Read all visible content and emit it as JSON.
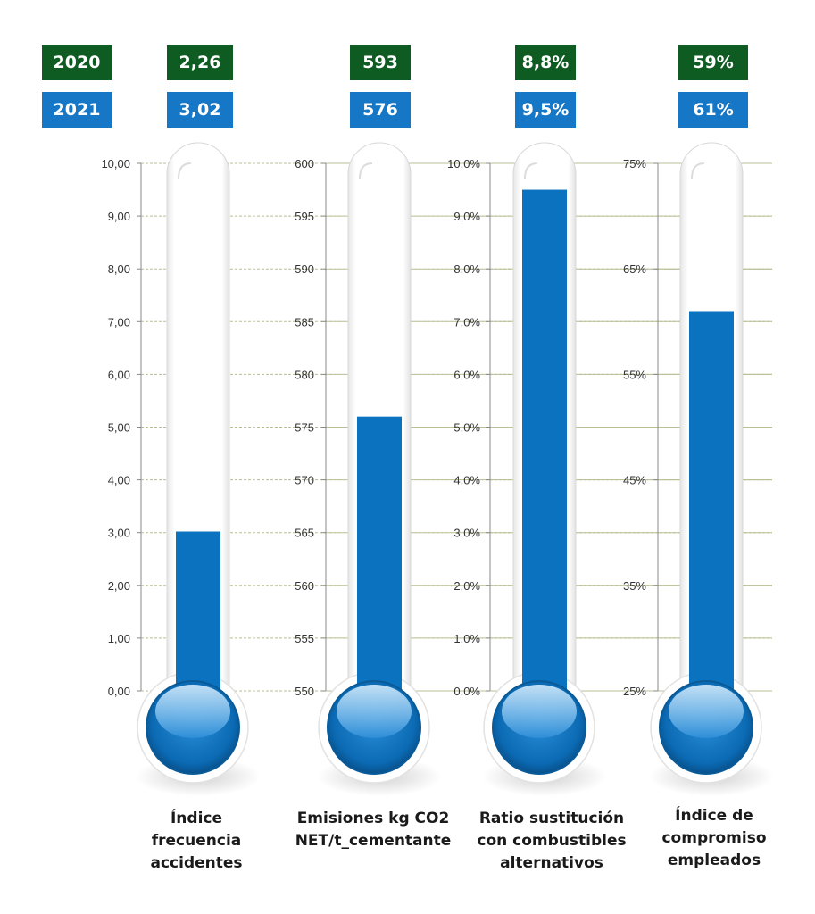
{
  "legend": {
    "year_2020": "2020",
    "year_2021": "2021"
  },
  "colors": {
    "badge_2020": "#0f5c23",
    "badge_2021": "#1677c6",
    "mercury": "#0b72bf",
    "gridline": "#b8bf94"
  },
  "chart_data": [
    {
      "type": "bar",
      "style": "thermometer",
      "categories": [
        "Índice frecuencia accidentes"
      ],
      "label_lines": [
        "Índice",
        "frecuencia",
        "accidentes"
      ],
      "badge_2020": "2,26",
      "badge_2021": "3,02",
      "series": [
        {
          "name": "2020",
          "values": [
            2.26
          ]
        },
        {
          "name": "2021",
          "values": [
            3.02
          ]
        }
      ],
      "ylim": [
        0,
        10
      ],
      "ticks": [
        "0,00",
        "1,00",
        "2,00",
        "3,00",
        "4,00",
        "5,00",
        "6,00",
        "7,00",
        "8,00",
        "9,00",
        "10,00"
      ],
      "grid": true
    },
    {
      "type": "bar",
      "style": "thermometer",
      "categories": [
        "Emisiones kg CO2 NET/t_cementante"
      ],
      "label_lines": [
        "Emisiones kg CO2",
        "NET/t_cementante"
      ],
      "badge_2020": "593",
      "badge_2021": "576",
      "series": [
        {
          "name": "2020",
          "values": [
            593
          ]
        },
        {
          "name": "2021",
          "values": [
            576
          ]
        }
      ],
      "ylim": [
        550,
        600
      ],
      "ticks": [
        "550",
        "555",
        "560",
        "565",
        "570",
        "575",
        "580",
        "585",
        "590",
        "595",
        "600"
      ],
      "grid": true
    },
    {
      "type": "bar",
      "style": "thermometer",
      "categories": [
        "Ratio sustitución con combustibles alternativos"
      ],
      "label_lines": [
        "Ratio sustitución",
        "con combustibles",
        "alternativos"
      ],
      "badge_2020": "8,8%",
      "badge_2021": "9,5%",
      "series": [
        {
          "name": "2020",
          "values": [
            8.8
          ]
        },
        {
          "name": "2021",
          "values": [
            9.5
          ]
        }
      ],
      "ylim": [
        0,
        10
      ],
      "ticks": [
        "0,0%",
        "1,0%",
        "2,0%",
        "3,0%",
        "4,0%",
        "5,0%",
        "6,0%",
        "7,0%",
        "8,0%",
        "9,0%",
        "10,0%"
      ],
      "grid": true
    },
    {
      "type": "bar",
      "style": "thermometer",
      "categories": [
        "Índice de compromiso empleados"
      ],
      "label_lines": [
        "Índice de",
        "compromiso",
        "empleados"
      ],
      "badge_2020": "59%",
      "badge_2021": "61%",
      "series": [
        {
          "name": "2020",
          "values": [
            59
          ]
        },
        {
          "name": "2021",
          "values": [
            61
          ]
        }
      ],
      "ylim": [
        25,
        75
      ],
      "ticks": [
        "25%",
        "35%",
        "45%",
        "55%",
        "65%",
        "75%"
      ],
      "grid": true
    }
  ]
}
